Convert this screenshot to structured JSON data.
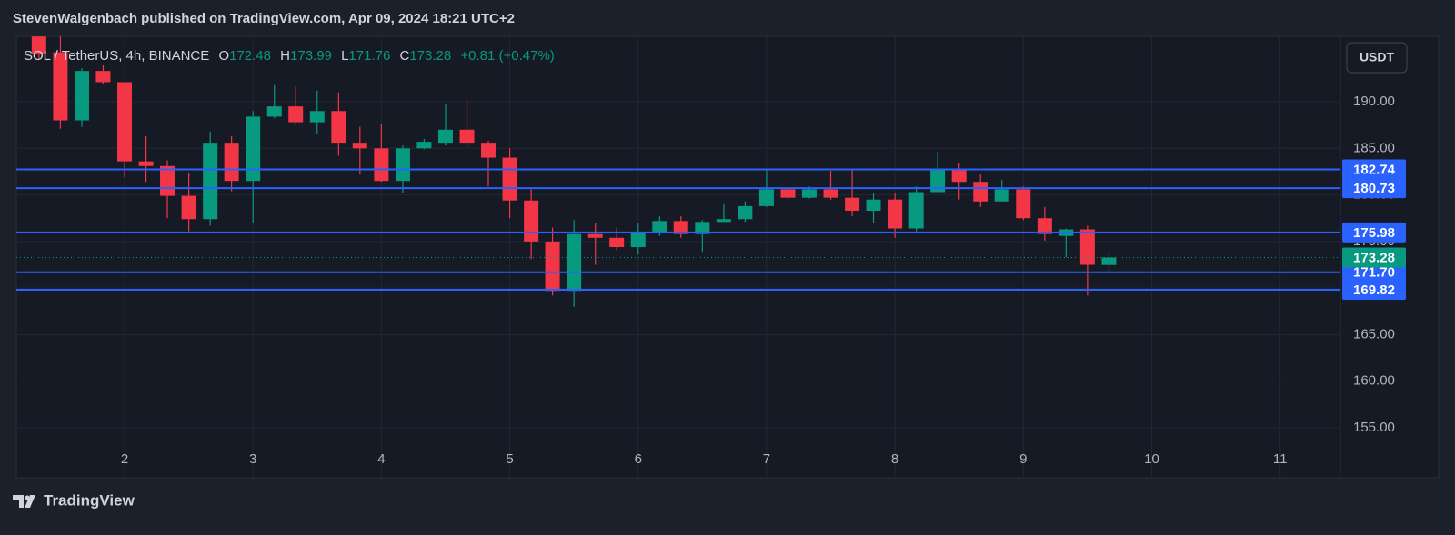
{
  "header": {
    "published": "StevenWalgenbach published on TradingView.com, Apr 09, 2024 18:21 UTC+2",
    "currency_button": "USDT",
    "brand": "TradingView"
  },
  "chart_data": {
    "type": "candlestick",
    "symbol": "SOL / TetherUS, 4h, BINANCE",
    "ohlc": [
      {
        "key": "O",
        "value": "172.48"
      },
      {
        "key": "H",
        "value": "173.99"
      },
      {
        "key": "L",
        "value": "171.76"
      },
      {
        "key": "C",
        "value": "173.28"
      }
    ],
    "change": "+0.81 (+0.47%)",
    "x": [
      1.333,
      1.5,
      1.667,
      1.833,
      2,
      2.167,
      2.333,
      2.5,
      2.667,
      2.833,
      3,
      3.167,
      3.333,
      3.5,
      3.667,
      3.833,
      4,
      4.167,
      4.333,
      4.5,
      4.667,
      4.833,
      5,
      5.167,
      5.333,
      5.5,
      5.667,
      5.833,
      6,
      6.167,
      6.333,
      6.5,
      6.667,
      6.833,
      7,
      7.167,
      7.333,
      7.5,
      7.667,
      7.833,
      8,
      8.167,
      8.333,
      8.5,
      8.667,
      8.833,
      9,
      9.167,
      9.333,
      9.5,
      9.667
    ],
    "open": [
      197.0,
      195.3,
      188.0,
      193.3,
      192.1,
      183.6,
      183.1,
      179.9,
      177.4,
      185.6,
      181.5,
      188.4,
      189.5,
      187.8,
      189.0,
      185.6,
      185.0,
      181.5,
      185.0,
      185.6,
      187.0,
      185.6,
      184.0,
      179.4,
      175.0,
      169.7,
      175.8,
      175.4,
      174.4,
      175.9,
      177.2,
      175.8,
      177.1,
      177.4,
      178.8,
      180.6,
      179.7,
      180.6,
      179.7,
      178.3,
      179.5,
      176.4,
      180.3,
      182.7,
      181.4,
      179.3,
      180.6,
      177.5,
      175.6,
      176.3,
      172.48
    ],
    "high": [
      197.0,
      197.0,
      193.6,
      193.9,
      192.1,
      186.3,
      183.7,
      182.4,
      186.8,
      186.3,
      189.0,
      191.8,
      191.6,
      191.2,
      191.0,
      187.3,
      187.6,
      185.3,
      186.0,
      189.7,
      190.2,
      185.8,
      185.0,
      180.6,
      176.5,
      177.3,
      177.0,
      176.5,
      177.0,
      177.7,
      177.7,
      177.3,
      179.0,
      179.3,
      182.7,
      180.9,
      180.9,
      182.6,
      182.7,
      180.2,
      180.2,
      180.9,
      184.6,
      183.4,
      182.2,
      181.6,
      180.9,
      178.7,
      176.4,
      176.7,
      173.99
    ],
    "low": [
      194.6,
      187.1,
      187.3,
      191.9,
      181.9,
      181.4,
      177.5,
      176.1,
      176.7,
      180.4,
      177.0,
      188.2,
      187.5,
      186.5,
      184.2,
      182.2,
      181.4,
      180.2,
      184.9,
      185.3,
      185.1,
      180.9,
      177.5,
      173.1,
      169.2,
      168.0,
      172.5,
      174.1,
      173.6,
      175.6,
      175.4,
      173.9,
      177.1,
      177.1,
      178.7,
      179.4,
      179.6,
      179.5,
      177.7,
      177.0,
      175.4,
      176.1,
      180.3,
      179.5,
      178.7,
      179.3,
      177.3,
      175.1,
      173.3,
      169.2,
      171.76
    ],
    "close": [
      195.1,
      188.0,
      193.3,
      192.1,
      183.6,
      183.1,
      179.9,
      177.4,
      185.6,
      181.5,
      188.4,
      189.5,
      187.8,
      189.0,
      185.6,
      185.0,
      181.5,
      185.0,
      185.7,
      187.0,
      185.6,
      184.0,
      179.4,
      175.0,
      169.7,
      175.8,
      175.4,
      174.4,
      175.9,
      177.2,
      175.8,
      177.1,
      177.4,
      178.8,
      180.6,
      179.7,
      180.6,
      179.7,
      178.3,
      179.5,
      176.4,
      180.3,
      182.7,
      181.4,
      179.3,
      180.6,
      177.5,
      175.8,
      176.3,
      172.5,
      173.28
    ],
    "up_color": "#089981",
    "down_color": "#f23645",
    "levels": [
      {
        "value": 182.74,
        "label": "182.74"
      },
      {
        "value": 180.73,
        "label": "180.73"
      },
      {
        "value": 175.98,
        "label": "175.98"
      },
      {
        "value": 171.7,
        "label": "171.70"
      },
      {
        "value": 169.82,
        "label": "169.82"
      }
    ],
    "level_color": "#2962ff",
    "last_price": {
      "value": 173.28,
      "label": "173.28"
    },
    "xlim": [
      1.157,
      11.47
    ],
    "xticks": [
      2,
      3,
      4,
      5,
      6,
      7,
      8,
      9,
      10,
      11
    ],
    "ylim": [
      149.64,
      197.02
    ],
    "yticks": [
      {
        "value": 155,
        "label": "155.00"
      },
      {
        "value": 160,
        "label": "160.00"
      },
      {
        "value": 165,
        "label": "165.00"
      },
      {
        "value": 170,
        "label": "170.00"
      },
      {
        "value": 175,
        "label": "175.00"
      },
      {
        "value": 180,
        "label": "180.00"
      },
      {
        "value": 185,
        "label": "185.00"
      },
      {
        "value": 190,
        "label": "190.00"
      }
    ],
    "grid": true
  }
}
